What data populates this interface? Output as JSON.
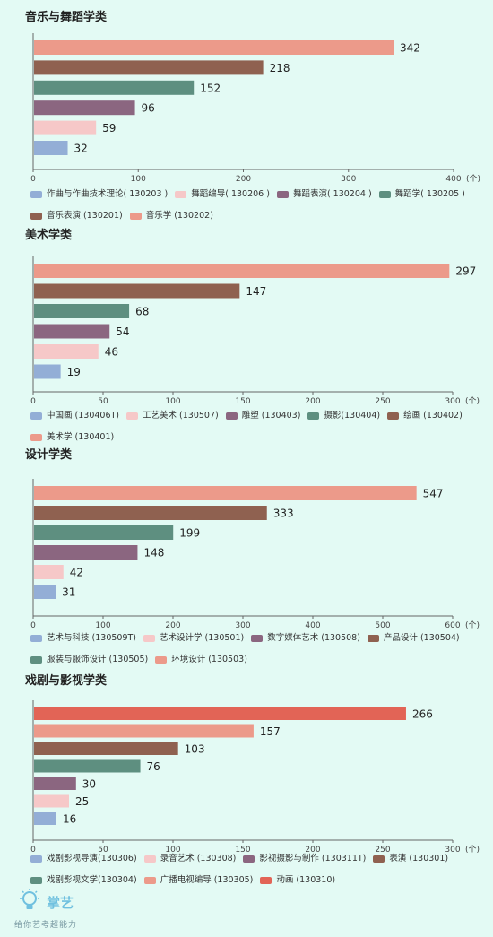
{
  "colors": {
    "blue": "#93aed6",
    "pink": "#f6c8c8",
    "purple": "#8b6680",
    "teal": "#5e8f80",
    "brown": "#8f6150",
    "salmon": "#ec9a8a",
    "red": "#e26456"
  },
  "unit_label": "(个)",
  "branding": {
    "brand_name": "掌艺",
    "slogan": "给你艺考超能力",
    "icon": "lightbulb-icon"
  },
  "chart_data": [
    {
      "type": "bar",
      "title": "音乐与舞蹈学类",
      "xlim": [
        0,
        400
      ],
      "ticks": [
        0,
        100,
        200,
        300,
        400
      ],
      "categories": [
        "音乐学 (130202)",
        "音乐表演 (130201)",
        "舞蹈学( 130205 )",
        "舞蹈表演( 130204 )",
        "舞蹈编导( 130206 )",
        "作曲与作曲技术理论( 130203 )"
      ],
      "values": [
        342,
        218,
        152,
        96,
        59,
        32
      ],
      "bar_colors": [
        "salmon",
        "brown",
        "teal",
        "purple",
        "pink",
        "blue"
      ],
      "legend": [
        {
          "label": "作曲与作曲技术理论( 130203 )",
          "color": "blue"
        },
        {
          "label": "舞蹈编导( 130206 )",
          "color": "pink"
        },
        {
          "label": "舞蹈表演( 130204 )",
          "color": "purple"
        },
        {
          "label": "舞蹈学( 130205 )",
          "color": "teal"
        },
        {
          "label": "音乐表演 (130201)",
          "color": "brown"
        },
        {
          "label": "音乐学 (130202)",
          "color": "salmon"
        }
      ]
    },
    {
      "type": "bar",
      "title": "美术学类",
      "xlim": [
        0,
        300
      ],
      "ticks": [
        0,
        50,
        100,
        150,
        200,
        250,
        300
      ],
      "categories": [
        "美术学 (130401)",
        "绘画 (130402)",
        "摄影(130404)",
        "雕塑 (130403)",
        "工艺美术 (130507)",
        "中国画 (130406T)"
      ],
      "values": [
        297,
        147,
        68,
        54,
        46,
        19
      ],
      "bar_colors": [
        "salmon",
        "brown",
        "teal",
        "purple",
        "pink",
        "blue"
      ],
      "legend": [
        {
          "label": "中国画 (130406T)",
          "color": "blue"
        },
        {
          "label": "工艺美术 (130507)",
          "color": "pink"
        },
        {
          "label": "雕塑 (130403)",
          "color": "purple"
        },
        {
          "label": "摄影(130404)",
          "color": "teal"
        },
        {
          "label": "绘画 (130402)",
          "color": "brown"
        },
        {
          "label": "美术学 (130401)",
          "color": "salmon"
        }
      ]
    },
    {
      "type": "bar",
      "title": "设计学类",
      "xlim": [
        0,
        600
      ],
      "ticks": [
        0,
        100,
        200,
        300,
        400,
        500,
        600
      ],
      "categories": [
        "环境设计 (130503)",
        "产品设计 (130504)",
        "服装与服饰设计 (130505)",
        "数字媒体艺术 (130508)",
        "艺术设计学 (130501)",
        "艺术与科技 (130509T)"
      ],
      "values": [
        547,
        333,
        199,
        148,
        42,
        31
      ],
      "bar_colors": [
        "salmon",
        "brown",
        "teal",
        "purple",
        "pink",
        "blue"
      ],
      "legend": [
        {
          "label": "艺术与科技 (130509T)",
          "color": "blue"
        },
        {
          "label": "艺术设计学 (130501)",
          "color": "pink"
        },
        {
          "label": "数字媒体艺术 (130508)",
          "color": "purple"
        },
        {
          "label": "产品设计 (130504)",
          "color": "brown"
        },
        {
          "label": "服装与服饰设计 (130505)",
          "color": "teal"
        },
        {
          "label": "环境设计 (130503)",
          "color": "salmon"
        }
      ]
    },
    {
      "type": "bar",
      "title": "戏剧与影视学类",
      "xlim": [
        0,
        300
      ],
      "ticks": [
        0,
        50,
        100,
        150,
        200,
        250,
        300
      ],
      "categories": [
        "动画 (130310)",
        "广播电视编导 (130305)",
        "表演 (130301)",
        "戏剧影视文学(130304)",
        "影视摄影与制作 (130311T)",
        "录音艺术 (130308)",
        "戏剧影视导演(130306)"
      ],
      "values": [
        266,
        157,
        103,
        76,
        30,
        25,
        16
      ],
      "bar_colors": [
        "red",
        "salmon",
        "brown",
        "teal",
        "purple",
        "pink",
        "blue"
      ],
      "legend": [
        {
          "label": "戏剧影视导演(130306)",
          "color": "blue"
        },
        {
          "label": "录音艺术 (130308)",
          "color": "pink"
        },
        {
          "label": "影视摄影与制作 (130311T)",
          "color": "purple"
        },
        {
          "label": "表演 (130301)",
          "color": "brown"
        },
        {
          "label": "戏剧影视文学(130304)",
          "color": "teal"
        },
        {
          "label": "广播电视编导 (130305)",
          "color": "salmon"
        },
        {
          "label": "动画 (130310)",
          "color": "red"
        }
      ]
    }
  ]
}
